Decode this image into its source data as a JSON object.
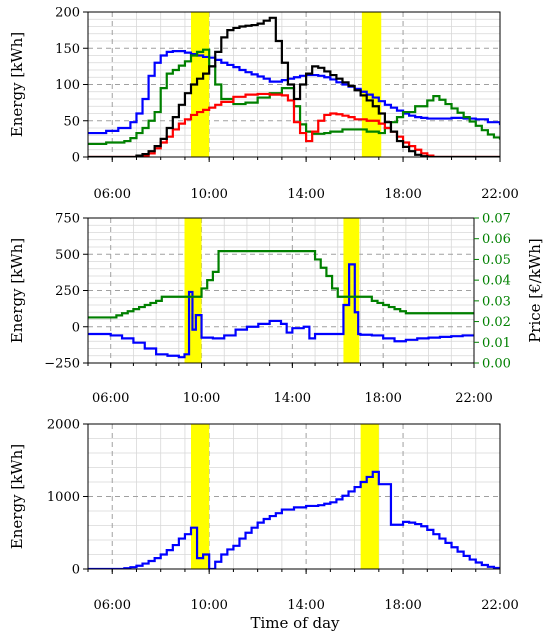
{
  "xlabel": "Time of day",
  "chart_data": [
    {
      "type": "line",
      "ylabel": "Energy [kWh]",
      "xlim": [
        5,
        22
      ],
      "ylim": [
        0,
        200
      ],
      "xticks": [
        6,
        10,
        14,
        18,
        22
      ],
      "xtick_labels": [
        "06:00",
        "10:00",
        "14:00",
        "18:00",
        "22:00"
      ],
      "yticks": [
        0,
        50,
        100,
        150,
        200
      ],
      "ytick_labels": [
        "0",
        "50",
        "100",
        "150",
        "200"
      ],
      "highlights": [
        [
          9.25,
          10.0
        ],
        [
          16.3,
          17.1
        ]
      ],
      "highlight_color": "#ffff00",
      "series": [
        {
          "color": "#0000ff",
          "x": [
            5,
            5.75,
            6.25,
            6.75,
            7,
            7.25,
            7.5,
            7.75,
            8,
            8.25,
            8.5,
            8.75,
            9,
            9.25,
            9.5,
            9.75,
            10,
            10.25,
            10.5,
            10.75,
            11,
            11.25,
            11.5,
            11.75,
            12,
            12.25,
            12.5,
            12.75,
            13,
            13.25,
            13.5,
            13.75,
            14,
            14.25,
            14.5,
            14.75,
            15,
            15.25,
            15.5,
            15.75,
            16,
            16.25,
            16.5,
            16.75,
            17,
            17.25,
            17.5,
            17.75,
            18,
            18.25,
            18.5,
            18.75,
            19,
            19.5,
            20,
            20.5,
            21,
            21.5,
            22
          ],
          "y": [
            33,
            36,
            40,
            48,
            60,
            80,
            112,
            130,
            140,
            145,
            146,
            146,
            144,
            142,
            140,
            138,
            137,
            134,
            130,
            127,
            124,
            120,
            117,
            114,
            111,
            108,
            104,
            104,
            106,
            108,
            110,
            112,
            113,
            113,
            112,
            110,
            107,
            103,
            100,
            97,
            94,
            90,
            86,
            82,
            77,
            72,
            68,
            64,
            60,
            57,
            55,
            54,
            53,
            53,
            54,
            53,
            52,
            48,
            44
          ],
          "x_end": 22
        },
        {
          "color": "#008000",
          "x": [
            5,
            5.75,
            6.5,
            6.75,
            7,
            7.25,
            7.5,
            7.75,
            8,
            8.25,
            8.5,
            8.75,
            9,
            9.25,
            9.5,
            9.75,
            10,
            10.25,
            10.5,
            11,
            11.5,
            12,
            12.5,
            13,
            13.25,
            13.5,
            13.75,
            14,
            14.25,
            14.5,
            14.75,
            15,
            15.5,
            16,
            16.5,
            17,
            17.25,
            17.5,
            17.75,
            18,
            18.5,
            19,
            19.25,
            19.5,
            19.75,
            20,
            20.25,
            20.5,
            20.75,
            21,
            21.25,
            21.5,
            21.75,
            22
          ],
          "y": [
            18,
            20,
            22,
            26,
            33,
            40,
            50,
            62,
            95,
            115,
            120,
            126,
            132,
            140,
            145,
            148,
            125,
            100,
            80,
            73,
            75,
            82,
            88,
            95,
            95,
            70,
            45,
            35,
            32,
            32,
            33,
            35,
            38,
            38,
            35,
            33,
            40,
            48,
            55,
            62,
            70,
            78,
            84,
            79,
            73,
            67,
            61,
            55,
            49,
            43,
            37,
            31,
            27,
            24
          ],
          "x_end": 22
        },
        {
          "color": "#ff0000",
          "x": [
            5,
            7,
            7.25,
            7.5,
            7.75,
            8,
            8.25,
            8.5,
            8.75,
            9,
            9.25,
            9.5,
            9.75,
            10,
            10.25,
            10.5,
            11,
            11.5,
            12,
            12.5,
            13,
            13.25,
            13.5,
            13.75,
            14,
            14.25,
            14.5,
            14.75,
            15,
            15.25,
            15.5,
            15.75,
            16,
            16.5,
            17,
            17.25,
            17.5,
            17.75,
            18,
            18.25,
            18.5,
            18.75,
            19,
            19.25,
            22
          ],
          "y": [
            0,
            0,
            2,
            5,
            12,
            20,
            28,
            38,
            46,
            52,
            58,
            62,
            65,
            68,
            72,
            76,
            83,
            86,
            87,
            86,
            85,
            78,
            48,
            33,
            22,
            35,
            50,
            58,
            60,
            59,
            57,
            55,
            52,
            50,
            46,
            40,
            35,
            28,
            20,
            15,
            10,
            5,
            2,
            0,
            0
          ],
          "x_end": 22
        },
        {
          "color": "#000000",
          "x": [
            5,
            6.75,
            7,
            7.25,
            7.5,
            7.75,
            8,
            8.25,
            8.5,
            8.75,
            9,
            9.25,
            9.5,
            9.75,
            10,
            10.25,
            10.5,
            10.75,
            11,
            11.25,
            11.5,
            11.75,
            12,
            12.25,
            12.5,
            12.75,
            13,
            13.25,
            13.5,
            13.75,
            14,
            14.25,
            14.5,
            14.75,
            15,
            15.25,
            15.5,
            15.75,
            16,
            16.25,
            16.5,
            16.75,
            17,
            17.25,
            17.5,
            17.75,
            18,
            18.25,
            18.5,
            18.75,
            19,
            19.25,
            22
          ],
          "y": [
            0,
            0,
            2,
            4,
            8,
            15,
            25,
            40,
            55,
            72,
            88,
            100,
            108,
            115,
            125,
            145,
            165,
            175,
            178,
            180,
            181,
            182,
            184,
            188,
            192,
            160,
            130,
            100,
            80,
            100,
            115,
            125,
            123,
            118,
            113,
            108,
            103,
            98,
            92,
            85,
            78,
            70,
            60,
            48,
            35,
            22,
            14,
            8,
            3,
            1,
            0,
            0,
            0
          ],
          "x_end": 22
        }
      ]
    },
    {
      "type": "line",
      "ylabel": "Energy [kWh]",
      "y2label": "Price [€/kWh]",
      "y2color": "#008000",
      "xlim": [
        5,
        22
      ],
      "ylim": [
        -250,
        750
      ],
      "y2lim": [
        0,
        0.07
      ],
      "xticks": [
        6,
        10,
        14,
        18,
        22
      ],
      "xtick_labels": [
        "06:00",
        "10:00",
        "14:00",
        "18:00",
        "22:00"
      ],
      "yticks": [
        -250,
        0,
        250,
        500,
        750
      ],
      "ytick_labels": [
        "−250",
        "0",
        "250",
        "500",
        "750"
      ],
      "y2ticks": [
        0,
        0.01,
        0.02,
        0.03,
        0.04,
        0.05,
        0.06,
        0.07
      ],
      "y2tick_labels": [
        "0.00",
        "0.01",
        "0.02",
        "0.03",
        "0.04",
        "0.05",
        "0.06",
        "0.07"
      ],
      "highlights": [
        [
          9.25,
          10.0
        ],
        [
          16.25,
          16.95
        ]
      ],
      "highlight_color": "#ffff00",
      "series": [
        {
          "color": "#0000ff",
          "axis": "left",
          "x": [
            5,
            6,
            6.5,
            7,
            7.5,
            8,
            8.5,
            9,
            9.25,
            9.45,
            9.6,
            9.75,
            10,
            10.5,
            11,
            11.5,
            12,
            12.5,
            13,
            13.5,
            13.75,
            14,
            14.5,
            14.75,
            15,
            15.5,
            16,
            16.25,
            16.5,
            16.75,
            16.9,
            17,
            17.5,
            18,
            18.5,
            19,
            19.5,
            20,
            20.5,
            21,
            21.5,
            22
          ],
          "y": [
            -50,
            -60,
            -80,
            -110,
            -150,
            -190,
            -200,
            -210,
            -190,
            240,
            -20,
            80,
            -75,
            -80,
            -60,
            -20,
            0,
            20,
            40,
            20,
            -40,
            -10,
            0,
            -80,
            -50,
            -50,
            -50,
            150,
            430,
            100,
            -50,
            -55,
            -60,
            -80,
            -100,
            -90,
            -80,
            -75,
            -70,
            -65,
            -60,
            -55
          ],
          "x_end": 22
        },
        {
          "color": "#008000",
          "axis": "right",
          "x": [
            5,
            6,
            6.25,
            6.5,
            6.75,
            7,
            7.25,
            7.5,
            7.75,
            8,
            8.25,
            9.75,
            10,
            10.25,
            10.5,
            10.75,
            15,
            15.25,
            15.5,
            15.75,
            16,
            17.25,
            17.5,
            17.75,
            18,
            18.25,
            18.5,
            18.75,
            19,
            22
          ],
          "y": [
            0.022,
            0.022,
            0.023,
            0.024,
            0.025,
            0.026,
            0.027,
            0.028,
            0.029,
            0.03,
            0.032,
            0.032,
            0.036,
            0.04,
            0.044,
            0.054,
            0.05,
            0.046,
            0.042,
            0.036,
            0.032,
            0.032,
            0.03,
            0.029,
            0.028,
            0.027,
            0.026,
            0.025,
            0.024,
            0.024
          ],
          "x_end": 22
        }
      ]
    },
    {
      "type": "line",
      "ylabel": "Energy [kWh]",
      "xlim": [
        5,
        22
      ],
      "ylim": [
        0,
        2000
      ],
      "xticks": [
        6,
        10,
        14,
        18,
        22
      ],
      "xtick_labels": [
        "06:00",
        "10:00",
        "14:00",
        "18:00",
        "22:00"
      ],
      "yticks": [
        0,
        1000,
        2000
      ],
      "ytick_labels": [
        "0",
        "1000",
        "2000"
      ],
      "highlights": [
        [
          9.25,
          10.0
        ],
        [
          16.25,
          17.0
        ]
      ],
      "highlight_color": "#ffff00",
      "series": [
        {
          "color": "#0000ff",
          "x": [
            5,
            6,
            6.5,
            6.75,
            7,
            7.25,
            7.5,
            7.75,
            8,
            8.25,
            8.5,
            8.75,
            9,
            9.25,
            9.5,
            9.75,
            10,
            10.25,
            10.5,
            10.75,
            11,
            11.25,
            11.5,
            11.75,
            12,
            12.25,
            12.5,
            12.75,
            13,
            13.5,
            14,
            14.5,
            14.75,
            15,
            15.25,
            15.5,
            15.75,
            16,
            16.25,
            16.5,
            16.75,
            17,
            17.5,
            18,
            18.25,
            18.5,
            18.75,
            19,
            19.25,
            19.5,
            19.75,
            20,
            20.25,
            20.5,
            20.75,
            21,
            21.25,
            21.5,
            21.75,
            22
          ],
          "y": [
            0,
            0,
            10,
            25,
            45,
            75,
            110,
            150,
            200,
            260,
            330,
            420,
            480,
            570,
            150,
            200,
            0,
            100,
            200,
            270,
            320,
            420,
            500,
            570,
            640,
            690,
            730,
            770,
            820,
            850,
            870,
            880,
            900,
            920,
            960,
            1010,
            1070,
            1130,
            1200,
            1270,
            1340,
            1170,
            610,
            650,
            640,
            620,
            590,
            540,
            480,
            420,
            360,
            300,
            240,
            180,
            130,
            90,
            55,
            30,
            15,
            5
          ],
          "x_end": 22
        }
      ]
    }
  ]
}
